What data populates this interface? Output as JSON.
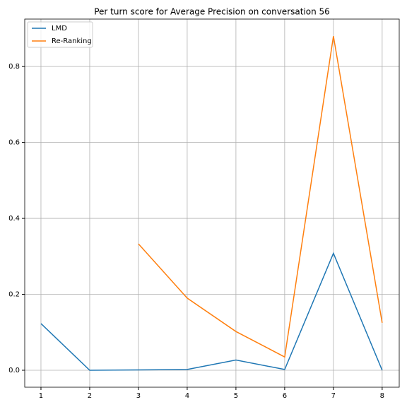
{
  "chart_data": {
    "type": "line",
    "title": "Per turn score for Average Precision on conversation 56",
    "x": [
      1,
      2,
      3,
      4,
      5,
      6,
      7,
      8
    ],
    "series": [
      {
        "name": "LMD",
        "color": "#1f77b4",
        "values": [
          0.123,
          0.0,
          0.001,
          0.002,
          0.027,
          0.002,
          0.308,
          0.0
        ]
      },
      {
        "name": "Re-Ranking",
        "color": "#ff7f0e",
        "values": [
          null,
          null,
          0.333,
          0.19,
          0.102,
          0.035,
          0.88,
          0.125
        ]
      }
    ],
    "xlim": [
      0.667,
      8.35
    ],
    "xticks": [
      1,
      2,
      3,
      4,
      5,
      6,
      7,
      8
    ],
    "ylim": [
      -0.0447,
      0.925
    ],
    "yticks": [
      {
        "value": 0,
        "label": "0.0"
      },
      0.2,
      0.4,
      0.6,
      0.8
    ],
    "grid": true,
    "legend": "upper left"
  }
}
